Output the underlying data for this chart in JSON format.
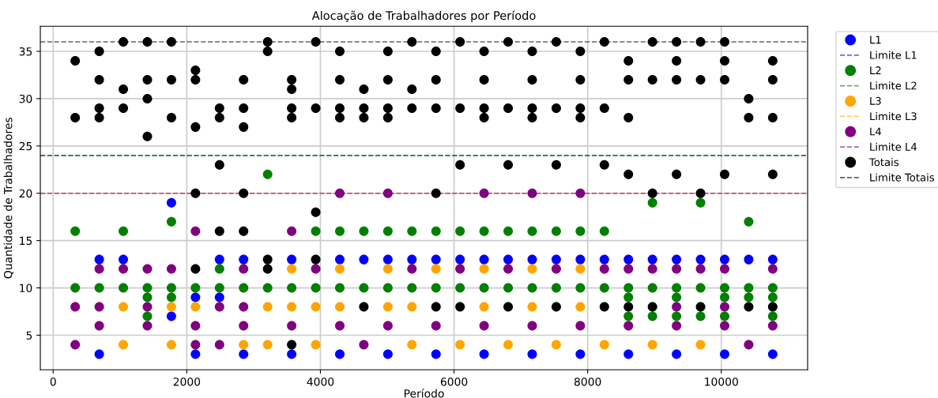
{
  "chart_data": {
    "type": "scatter",
    "title": "Alocação de Trabalhadores por Período",
    "xlabel": "Período",
    "ylabel": "Quantidade de Trabalhadores",
    "xlim": [
      -192,
      11292
    ],
    "xticks": [
      0,
      2000,
      4000,
      6000,
      8000,
      10000
    ],
    "ylim": [
      1.35,
      37.65
    ],
    "yticks": [
      5,
      10,
      15,
      20,
      25,
      30,
      35
    ],
    "grid": true,
    "legend": "top right",
    "marker": "circle",
    "series": [
      {
        "name": "L1",
        "color": "#0000ff",
        "x": [
          690,
          690,
          1050,
          1770,
          1770,
          2130,
          2130,
          2490,
          2490,
          2850,
          2850,
          3570,
          3570,
          4290,
          4290,
          4650,
          5010,
          5010,
          5370,
          5730,
          5730,
          6090,
          6450,
          6450,
          6810,
          7170,
          7170,
          7530,
          7890,
          7890,
          8250,
          8610,
          8610,
          8970,
          9330,
          9330,
          9690,
          10050,
          10050,
          10410,
          10770,
          10770
        ],
        "values": [
          13,
          3,
          13,
          19,
          7,
          9,
          3,
          13,
          9,
          13,
          3,
          13,
          3,
          13,
          3,
          13,
          13,
          3,
          13,
          13,
          3,
          13,
          13,
          3,
          13,
          13,
          3,
          13,
          13,
          3,
          13,
          13,
          3,
          13,
          13,
          3,
          13,
          13,
          3,
          13,
          13,
          3
        ]
      },
      {
        "name": "L2",
        "color": "#008000",
        "x": [
          330,
          330,
          690,
          1050,
          1050,
          1410,
          1410,
          1410,
          1770,
          1770,
          1770,
          2130,
          2490,
          2490,
          2850,
          3210,
          3210,
          3570,
          3930,
          3930,
          4290,
          4290,
          4650,
          4650,
          5010,
          5010,
          5370,
          5370,
          5730,
          5730,
          6090,
          6090,
          6450,
          6450,
          6810,
          6810,
          7170,
          7170,
          7530,
          7530,
          7890,
          7890,
          8250,
          8250,
          8610,
          8610,
          8610,
          8970,
          8970,
          8970,
          9330,
          9330,
          9330,
          9690,
          9690,
          9690,
          10050,
          10050,
          10050,
          10410,
          10410,
          10410,
          10770,
          10770,
          10770
        ],
        "values": [
          16,
          10,
          10,
          16,
          10,
          10,
          9,
          7,
          17,
          10,
          9,
          10,
          12,
          10,
          10,
          22,
          10,
          10,
          16,
          10,
          16,
          10,
          16,
          10,
          16,
          10,
          16,
          10,
          16,
          10,
          16,
          10,
          16,
          10,
          16,
          10,
          16,
          10,
          16,
          10,
          16,
          10,
          16,
          10,
          10,
          9,
          7,
          19,
          10,
          7,
          10,
          9,
          7,
          19,
          10,
          7,
          10,
          9,
          7,
          17,
          10,
          9,
          10,
          9,
          7
        ]
      },
      {
        "name": "L3",
        "color": "#ffa500",
        "x": [
          1050,
          1050,
          1770,
          1770,
          2130,
          2850,
          3210,
          3210,
          3570,
          3570,
          3930,
          3930,
          4290,
          4290,
          5010,
          5010,
          5370,
          5370,
          5730,
          6090,
          6450,
          6450,
          6810,
          7170,
          7170,
          7530,
          7890,
          7890,
          8250,
          8970,
          9690
        ],
        "values": [
          8,
          4,
          8,
          4,
          8,
          4,
          8,
          4,
          12,
          8,
          8,
          4,
          12,
          8,
          12,
          8,
          8,
          4,
          12,
          4,
          12,
          8,
          4,
          12,
          8,
          4,
          12,
          8,
          4,
          4,
          4
        ]
      },
      {
        "name": "L4",
        "color": "#800080",
        "x": [
          330,
          330,
          690,
          690,
          690,
          1050,
          1410,
          1410,
          1410,
          1770,
          2130,
          2130,
          2130,
          2490,
          2490,
          2850,
          2850,
          2850,
          3570,
          3570,
          3930,
          4290,
          4290,
          4650,
          5010,
          5010,
          5370,
          5730,
          6090,
          6450,
          6450,
          6810,
          7170,
          7170,
          7530,
          7890,
          7890,
          8250,
          8610,
          8610,
          8970,
          9330,
          9330,
          9330,
          9690,
          10050,
          10050,
          10050,
          10410,
          10770,
          10770
        ],
        "values": [
          8,
          4,
          12,
          8,
          6,
          12,
          12,
          8,
          6,
          12,
          16,
          6,
          4,
          8,
          4,
          12,
          8,
          6,
          16,
          6,
          12,
          20,
          6,
          4,
          20,
          6,
          12,
          6,
          12,
          20,
          6,
          12,
          20,
          6,
          12,
          20,
          6,
          12,
          12,
          6,
          12,
          12,
          8,
          6,
          12,
          12,
          8,
          6,
          4,
          12,
          6
        ]
      },
      {
        "name": "Totais",
        "color": "#000000",
        "x": [
          330,
          330,
          690,
          690,
          690,
          690,
          1050,
          1050,
          1050,
          1410,
          1410,
          1410,
          1410,
          1770,
          1770,
          1770,
          2130,
          2130,
          2130,
          2130,
          2130,
          2490,
          2490,
          2490,
          2490,
          2850,
          2850,
          2850,
          2850,
          2850,
          3210,
          3210,
          3210,
          3210,
          3570,
          3570,
          3570,
          3570,
          3570,
          3930,
          3930,
          3930,
          3930,
          4290,
          4290,
          4290,
          4290,
          4650,
          4650,
          4650,
          4650,
          5010,
          5010,
          5010,
          5010,
          5370,
          5370,
          5370,
          5730,
          5730,
          5730,
          5730,
          5730,
          6090,
          6090,
          6090,
          6090,
          6450,
          6450,
          6450,
          6450,
          6810,
          6810,
          6810,
          6810,
          7170,
          7170,
          7170,
          7170,
          7530,
          7530,
          7530,
          7530,
          7890,
          7890,
          7890,
          7890,
          8250,
          8250,
          8250,
          8250,
          8610,
          8610,
          8610,
          8610,
          8610,
          8970,
          8970,
          8970,
          8970,
          9330,
          9330,
          9330,
          9330,
          9690,
          9690,
          9690,
          9690,
          10050,
          10050,
          10050,
          10050,
          10410,
          10410,
          10410,
          10770,
          10770,
          10770,
          10770,
          10770
        ],
        "values": [
          34,
          28,
          35,
          32,
          29,
          28,
          36,
          31,
          29,
          36,
          32,
          30,
          26,
          36,
          32,
          28,
          33,
          32,
          27,
          20,
          12,
          29,
          28,
          23,
          16,
          32,
          29,
          27,
          20,
          16,
          36,
          35,
          13,
          12,
          32,
          31,
          29,
          28,
          4,
          36,
          29,
          18,
          13,
          35,
          32,
          29,
          28,
          31,
          29,
          28,
          8,
          35,
          32,
          29,
          28,
          36,
          31,
          29,
          35,
          32,
          29,
          20,
          8,
          36,
          29,
          23,
          8,
          35,
          32,
          29,
          28,
          36,
          29,
          23,
          8,
          35,
          32,
          29,
          28,
          36,
          29,
          23,
          8,
          35,
          32,
          29,
          28,
          36,
          29,
          23,
          8,
          34,
          32,
          28,
          22,
          8,
          36,
          32,
          20,
          8,
          36,
          34,
          32,
          22,
          36,
          32,
          20,
          8,
          36,
          34,
          32,
          22,
          30,
          28,
          8,
          34,
          32,
          28,
          22,
          8
        ]
      }
    ],
    "ref_lines": [
      {
        "axis": "y",
        "value": 24,
        "label": "Limite L1",
        "color": "#0000ff",
        "line_style": "dashed"
      },
      {
        "axis": "y",
        "value": 24,
        "label": "Limite L2",
        "color": "#008000",
        "line_style": "dashed"
      },
      {
        "axis": "y",
        "value": 20,
        "label": "Limite L3",
        "color": "#ffa500",
        "line_style": "dashed"
      },
      {
        "axis": "y",
        "value": 20,
        "label": "Limite L4",
        "color": "#800080",
        "line_style": "dashed"
      },
      {
        "axis": "y",
        "value": 36,
        "label": "Limite Totais",
        "color": "#000000",
        "line_style": "dashed"
      }
    ]
  }
}
